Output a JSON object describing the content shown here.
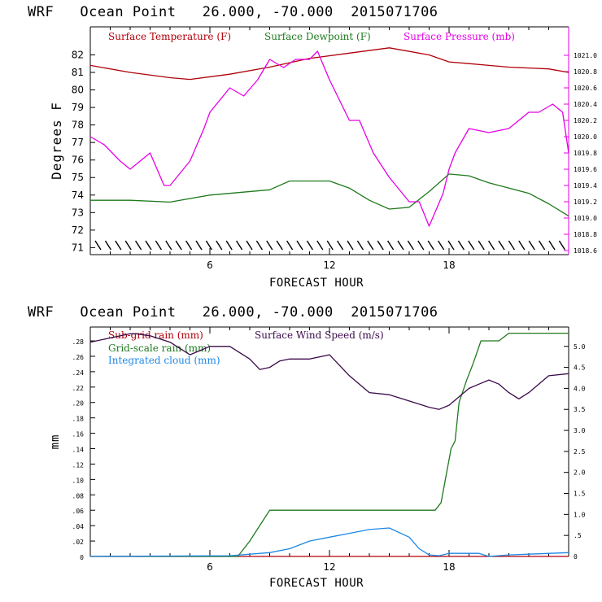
{
  "charts": [
    {
      "title": "WRF   Ocean Point   26.000, -70.000  2015071706",
      "xlabel": "FORECAST HOUR",
      "ylabel": "Degrees F",
      "legend": [
        "Surface Temperature (F)",
        "Surface Dewpoint (F)",
        "Surface Pressure (mb)"
      ],
      "legend_colors": [
        "#b0000a",
        "#1e7a1e",
        "#e600e6"
      ],
      "x_ticks": [
        "6",
        "12",
        "18"
      ],
      "left_ticks": [
        "71",
        "72",
        "73",
        "74",
        "75",
        "76",
        "77",
        "78",
        "79",
        "80",
        "81",
        "82"
      ],
      "right_ticks": [
        "1018.6",
        "1018.8",
        "1019.0",
        "1019.2",
        "1019.4",
        "1019.6",
        "1019.8",
        "1020.0",
        "1020.2",
        "1020.4",
        "1020.6",
        "1020.8",
        "1021.0"
      ]
    },
    {
      "title": "WRF   Ocean Point   26.000, -70.000  2015071706",
      "xlabel": "FORECAST HOUR",
      "ylabel": "mm",
      "legend": [
        "Sub-grid rain (mm)",
        "Grid-scale rain (mm)",
        "Integrated cloud (mm)",
        "Surface Wind Speed (m/s)"
      ],
      "legend_colors": [
        "#b0000a",
        "#1e7a1e",
        "#1e88e5",
        "#3a0a4a"
      ],
      "x_ticks": [
        "6",
        "12",
        "18"
      ],
      "left_ticks": [
        "0",
        ".02",
        ".04",
        ".06",
        ".08",
        ".10",
        ".12",
        ".14",
        ".16",
        ".18",
        ".20",
        ".22",
        ".24",
        ".26",
        ".28"
      ],
      "right_ticks": [
        "0",
        ".5",
        "1.0",
        "1.5",
        "2.0",
        "2.5",
        "3.0",
        "3.5",
        "4.0",
        "4.5",
        "5.0"
      ]
    }
  ],
  "chart_data": [
    {
      "type": "line",
      "title": "WRF   Ocean Point   26.000, -70.000  2015071706",
      "xlabel": "FORECAST HOUR",
      "ylabel": "Degrees F",
      "xlim": [
        0,
        24
      ],
      "ylim": [
        70.6,
        83.6
      ],
      "y2lim": [
        1018.55,
        1021.35
      ],
      "series": [
        {
          "name": "Surface Temperature (F)",
          "axis": "left",
          "x": [
            0,
            2,
            4,
            5,
            7,
            9,
            11,
            13,
            15,
            17,
            18,
            19,
            20,
            21,
            22,
            23,
            24
          ],
          "y": [
            81.4,
            81.0,
            80.7,
            80.6,
            80.9,
            81.3,
            81.8,
            82.1,
            82.4,
            82.0,
            81.6,
            81.5,
            81.4,
            81.3,
            81.25,
            81.2,
            81.0
          ]
        },
        {
          "name": "Surface Dewpoint (F)",
          "axis": "left",
          "x": [
            0,
            2,
            4,
            6,
            9,
            10,
            12,
            13,
            14,
            15,
            16,
            17,
            18,
            19,
            20,
            22,
            23,
            24
          ],
          "y": [
            73.7,
            73.7,
            73.6,
            74.0,
            74.3,
            74.8,
            74.8,
            74.4,
            73.7,
            73.2,
            73.3,
            74.2,
            75.2,
            75.1,
            74.7,
            74.1,
            73.5,
            72.8
          ]
        },
        {
          "name": "Surface Pressure (mb)",
          "axis": "right",
          "x": [
            0,
            0.7,
            1.5,
            2,
            3,
            3.7,
            4,
            5,
            5.7,
            6,
            7,
            7.7,
            8.4,
            9,
            9.7,
            10.3,
            11,
            11.4,
            12,
            13,
            13.5,
            14.2,
            15,
            16,
            16.5,
            17,
            17.7,
            18,
            18.3,
            19,
            20,
            21,
            22,
            22.5,
            23.2,
            23.7,
            24
          ],
          "y": [
            1020.0,
            1019.9,
            1019.7,
            1019.6,
            1019.8,
            1019.4,
            1019.4,
            1019.7,
            1020.1,
            1020.3,
            1020.6,
            1020.5,
            1020.7,
            1020.95,
            1020.85,
            1020.95,
            1020.95,
            1021.05,
            1020.7,
            1020.2,
            1020.2,
            1019.8,
            1019.5,
            1019.2,
            1019.2,
            1018.9,
            1019.3,
            1019.6,
            1019.8,
            1020.1,
            1020.05,
            1020.1,
            1020.3,
            1020.3,
            1020.4,
            1020.3,
            1019.8
          ]
        }
      ]
    },
    {
      "type": "line",
      "title": "WRF   Ocean Point   26.000, -70.000  2015071706",
      "xlabel": "FORECAST HOUR",
      "ylabel": "mm",
      "xlim": [
        0,
        24
      ],
      "ylim": [
        0,
        0.298
      ],
      "y2lim": [
        0,
        5.46
      ],
      "series": [
        {
          "name": "Sub-grid rain (mm)",
          "axis": "left",
          "x": [
            0,
            24
          ],
          "y": [
            0,
            0
          ]
        },
        {
          "name": "Grid-scale rain (mm)",
          "axis": "left",
          "x": [
            0,
            7.4,
            8,
            9,
            13,
            17.3,
            17.6,
            18.1,
            18.3,
            18.5,
            18.9,
            19.2,
            19.6,
            20,
            20.5,
            21,
            21.5,
            22,
            24
          ],
          "y": [
            0,
            0,
            0.02,
            0.06,
            0.06,
            0.06,
            0.07,
            0.14,
            0.15,
            0.2,
            0.23,
            0.25,
            0.28,
            0.28,
            0.28,
            0.29,
            0.29,
            0.29,
            0.29
          ]
        },
        {
          "name": "Integrated cloud (mm)",
          "axis": "left",
          "x": [
            0,
            7,
            9,
            10,
            11,
            12,
            13,
            14,
            15,
            16,
            16.5,
            17,
            17.5,
            18,
            19.5,
            20,
            21,
            22,
            24
          ],
          "y": [
            0,
            0.001,
            0.005,
            0.01,
            0.02,
            0.025,
            0.03,
            0.035,
            0.037,
            0.025,
            0.01,
            0.002,
            0.001,
            0.004,
            0.004,
            0,
            0.002,
            0.003,
            0.005
          ]
        },
        {
          "name": "Surface Wind Speed (m/s)",
          "axis": "right",
          "x": [
            0,
            1,
            2,
            2.3,
            3,
            4,
            5,
            6,
            7,
            8,
            8.5,
            9,
            9.5,
            10,
            11,
            12,
            13,
            14,
            15,
            16,
            17,
            17.5,
            18,
            18.5,
            19,
            19.5,
            20,
            20.5,
            21,
            21.5,
            22,
            23,
            24
          ],
          "y": [
            5.1,
            5.2,
            5.3,
            5.3,
            5.25,
            5.1,
            4.8,
            5.0,
            5.0,
            4.7,
            4.45,
            4.5,
            4.65,
            4.7,
            4.7,
            4.8,
            4.3,
            3.9,
            3.85,
            3.7,
            3.55,
            3.5,
            3.6,
            3.8,
            4.0,
            4.1,
            4.2,
            4.1,
            3.9,
            3.75,
            3.9,
            4.3,
            4.35
          ]
        }
      ]
    }
  ]
}
